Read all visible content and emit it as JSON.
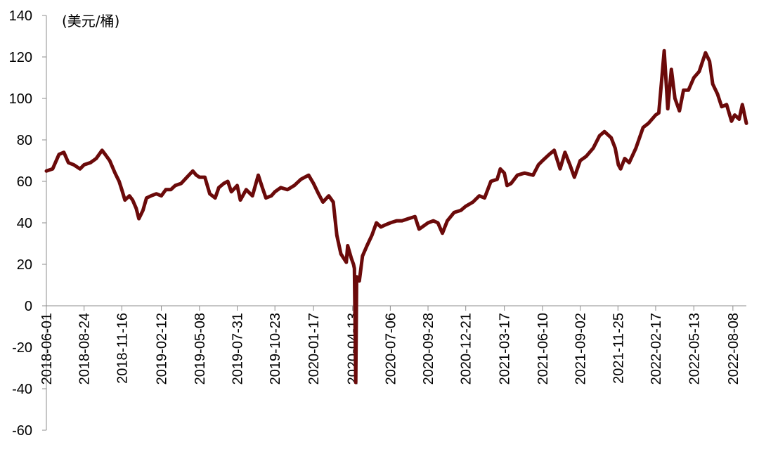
{
  "chart_data": {
    "type": "line",
    "unit_label": "(美元/桶)",
    "ylim": [
      -60,
      140
    ],
    "y_ticks": [
      140,
      120,
      100,
      80,
      60,
      40,
      20,
      0,
      -20,
      -40,
      -60
    ],
    "x_ticks": [
      "2018-06-01",
      "2018-08-24",
      "2018-11-16",
      "2019-02-12",
      "2019-05-08",
      "2019-07-31",
      "2019-10-23",
      "2020-01-17",
      "2020-04-13",
      "2020-07-06",
      "2020-09-28",
      "2020-12-21",
      "2021-03-17",
      "2021-06-10",
      "2021-09-02",
      "2021-11-25",
      "2022-02-17",
      "2022-05-13",
      "2022-08-08"
    ],
    "x_range": [
      "2018-06-01",
      "2022-09-07"
    ],
    "grid": false,
    "legend": "none",
    "line_color": "#6b0a0a",
    "series": [
      {
        "points": [
          [
            "2018-06-01",
            65
          ],
          [
            "2018-06-15",
            66
          ],
          [
            "2018-06-29",
            73
          ],
          [
            "2018-07-10",
            74
          ],
          [
            "2018-07-20",
            69
          ],
          [
            "2018-08-01",
            68
          ],
          [
            "2018-08-15",
            66
          ],
          [
            "2018-08-24",
            68
          ],
          [
            "2018-09-07",
            69
          ],
          [
            "2018-09-20",
            71
          ],
          [
            "2018-10-03",
            75
          ],
          [
            "2018-10-10",
            73
          ],
          [
            "2018-10-20",
            70
          ],
          [
            "2018-11-01",
            64
          ],
          [
            "2018-11-10",
            60
          ],
          [
            "2018-11-16",
            56
          ],
          [
            "2018-11-23",
            51
          ],
          [
            "2018-12-03",
            53
          ],
          [
            "2018-12-10",
            51
          ],
          [
            "2018-12-18",
            47
          ],
          [
            "2018-12-24",
            42
          ],
          [
            "2019-01-02",
            46
          ],
          [
            "2019-01-10",
            52
          ],
          [
            "2019-01-20",
            53
          ],
          [
            "2019-02-01",
            54
          ],
          [
            "2019-02-12",
            53
          ],
          [
            "2019-02-22",
            56
          ],
          [
            "2019-03-05",
            56
          ],
          [
            "2019-03-15",
            58
          ],
          [
            "2019-03-28",
            59
          ],
          [
            "2019-04-10",
            62
          ],
          [
            "2019-04-23",
            65
          ],
          [
            "2019-05-01",
            63
          ],
          [
            "2019-05-08",
            62
          ],
          [
            "2019-05-20",
            62
          ],
          [
            "2019-05-31",
            54
          ],
          [
            "2019-06-12",
            52
          ],
          [
            "2019-06-20",
            57
          ],
          [
            "2019-07-01",
            59
          ],
          [
            "2019-07-10",
            60
          ],
          [
            "2019-07-18",
            55
          ],
          [
            "2019-07-31",
            58
          ],
          [
            "2019-08-07",
            51
          ],
          [
            "2019-08-20",
            56
          ],
          [
            "2019-09-03",
            53
          ],
          [
            "2019-09-16",
            63
          ],
          [
            "2019-09-25",
            57
          ],
          [
            "2019-10-03",
            52
          ],
          [
            "2019-10-15",
            53
          ],
          [
            "2019-10-23",
            55
          ],
          [
            "2019-11-05",
            57
          ],
          [
            "2019-11-20",
            56
          ],
          [
            "2019-12-05",
            58
          ],
          [
            "2019-12-20",
            61
          ],
          [
            "2020-01-06",
            63
          ],
          [
            "2020-01-17",
            59
          ],
          [
            "2020-01-28",
            54
          ],
          [
            "2020-02-07",
            50
          ],
          [
            "2020-02-20",
            53
          ],
          [
            "2020-03-01",
            50
          ],
          [
            "2020-03-09",
            34
          ],
          [
            "2020-03-18",
            25
          ],
          [
            "2020-03-30",
            21
          ],
          [
            "2020-04-02",
            29
          ],
          [
            "2020-04-10",
            23
          ],
          [
            "2020-04-15",
            20
          ],
          [
            "2020-04-17",
            18
          ],
          [
            "2020-04-20",
            -37
          ],
          [
            "2020-04-22",
            14
          ],
          [
            "2020-04-28",
            12
          ],
          [
            "2020-05-05",
            24
          ],
          [
            "2020-05-15",
            29
          ],
          [
            "2020-05-26",
            34
          ],
          [
            "2020-06-05",
            40
          ],
          [
            "2020-06-15",
            38
          ],
          [
            "2020-06-25",
            39
          ],
          [
            "2020-07-06",
            40
          ],
          [
            "2020-07-20",
            41
          ],
          [
            "2020-08-01",
            41
          ],
          [
            "2020-08-15",
            42
          ],
          [
            "2020-08-30",
            43
          ],
          [
            "2020-09-08",
            37
          ],
          [
            "2020-09-15",
            38
          ],
          [
            "2020-09-28",
            40
          ],
          [
            "2020-10-10",
            41
          ],
          [
            "2020-10-20",
            40
          ],
          [
            "2020-10-30",
            35
          ],
          [
            "2020-11-10",
            41
          ],
          [
            "2020-11-25",
            45
          ],
          [
            "2020-12-10",
            46
          ],
          [
            "2020-12-21",
            48
          ],
          [
            "2021-01-06",
            50
          ],
          [
            "2021-01-20",
            53
          ],
          [
            "2021-02-01",
            52
          ],
          [
            "2021-02-15",
            60
          ],
          [
            "2021-03-01",
            61
          ],
          [
            "2021-03-08",
            66
          ],
          [
            "2021-03-17",
            64
          ],
          [
            "2021-03-23",
            58
          ],
          [
            "2021-04-01",
            59
          ],
          [
            "2021-04-15",
            63
          ],
          [
            "2021-05-01",
            64
          ],
          [
            "2021-05-20",
            63
          ],
          [
            "2021-06-01",
            68
          ],
          [
            "2021-06-10",
            70
          ],
          [
            "2021-06-25",
            73
          ],
          [
            "2021-07-06",
            75
          ],
          [
            "2021-07-19",
            66
          ],
          [
            "2021-07-30",
            74
          ],
          [
            "2021-08-10",
            68
          ],
          [
            "2021-08-20",
            62
          ],
          [
            "2021-09-02",
            70
          ],
          [
            "2021-09-15",
            72
          ],
          [
            "2021-10-01",
            76
          ],
          [
            "2021-10-15",
            82
          ],
          [
            "2021-10-26",
            84
          ],
          [
            "2021-11-10",
            81
          ],
          [
            "2021-11-19",
            76
          ],
          [
            "2021-11-26",
            68
          ],
          [
            "2021-12-01",
            66
          ],
          [
            "2021-12-10",
            71
          ],
          [
            "2021-12-20",
            69
          ],
          [
            "2022-01-04",
            76
          ],
          [
            "2022-01-20",
            86
          ],
          [
            "2022-02-01",
            88
          ],
          [
            "2022-02-17",
            92
          ],
          [
            "2022-02-24",
            93
          ],
          [
            "2022-03-02",
            108
          ],
          [
            "2022-03-08",
            123
          ],
          [
            "2022-03-16",
            95
          ],
          [
            "2022-03-24",
            114
          ],
          [
            "2022-04-01",
            100
          ],
          [
            "2022-04-11",
            94
          ],
          [
            "2022-04-20",
            104
          ],
          [
            "2022-05-01",
            104
          ],
          [
            "2022-05-13",
            110
          ],
          [
            "2022-05-25",
            113
          ],
          [
            "2022-06-08",
            122
          ],
          [
            "2022-06-17",
            118
          ],
          [
            "2022-06-24",
            107
          ],
          [
            "2022-07-05",
            102
          ],
          [
            "2022-07-14",
            96
          ],
          [
            "2022-07-25",
            97
          ],
          [
            "2022-08-05",
            89
          ],
          [
            "2022-08-12",
            92
          ],
          [
            "2022-08-22",
            90
          ],
          [
            "2022-08-29",
            97
          ],
          [
            "2022-09-07",
            88
          ]
        ]
      }
    ]
  }
}
